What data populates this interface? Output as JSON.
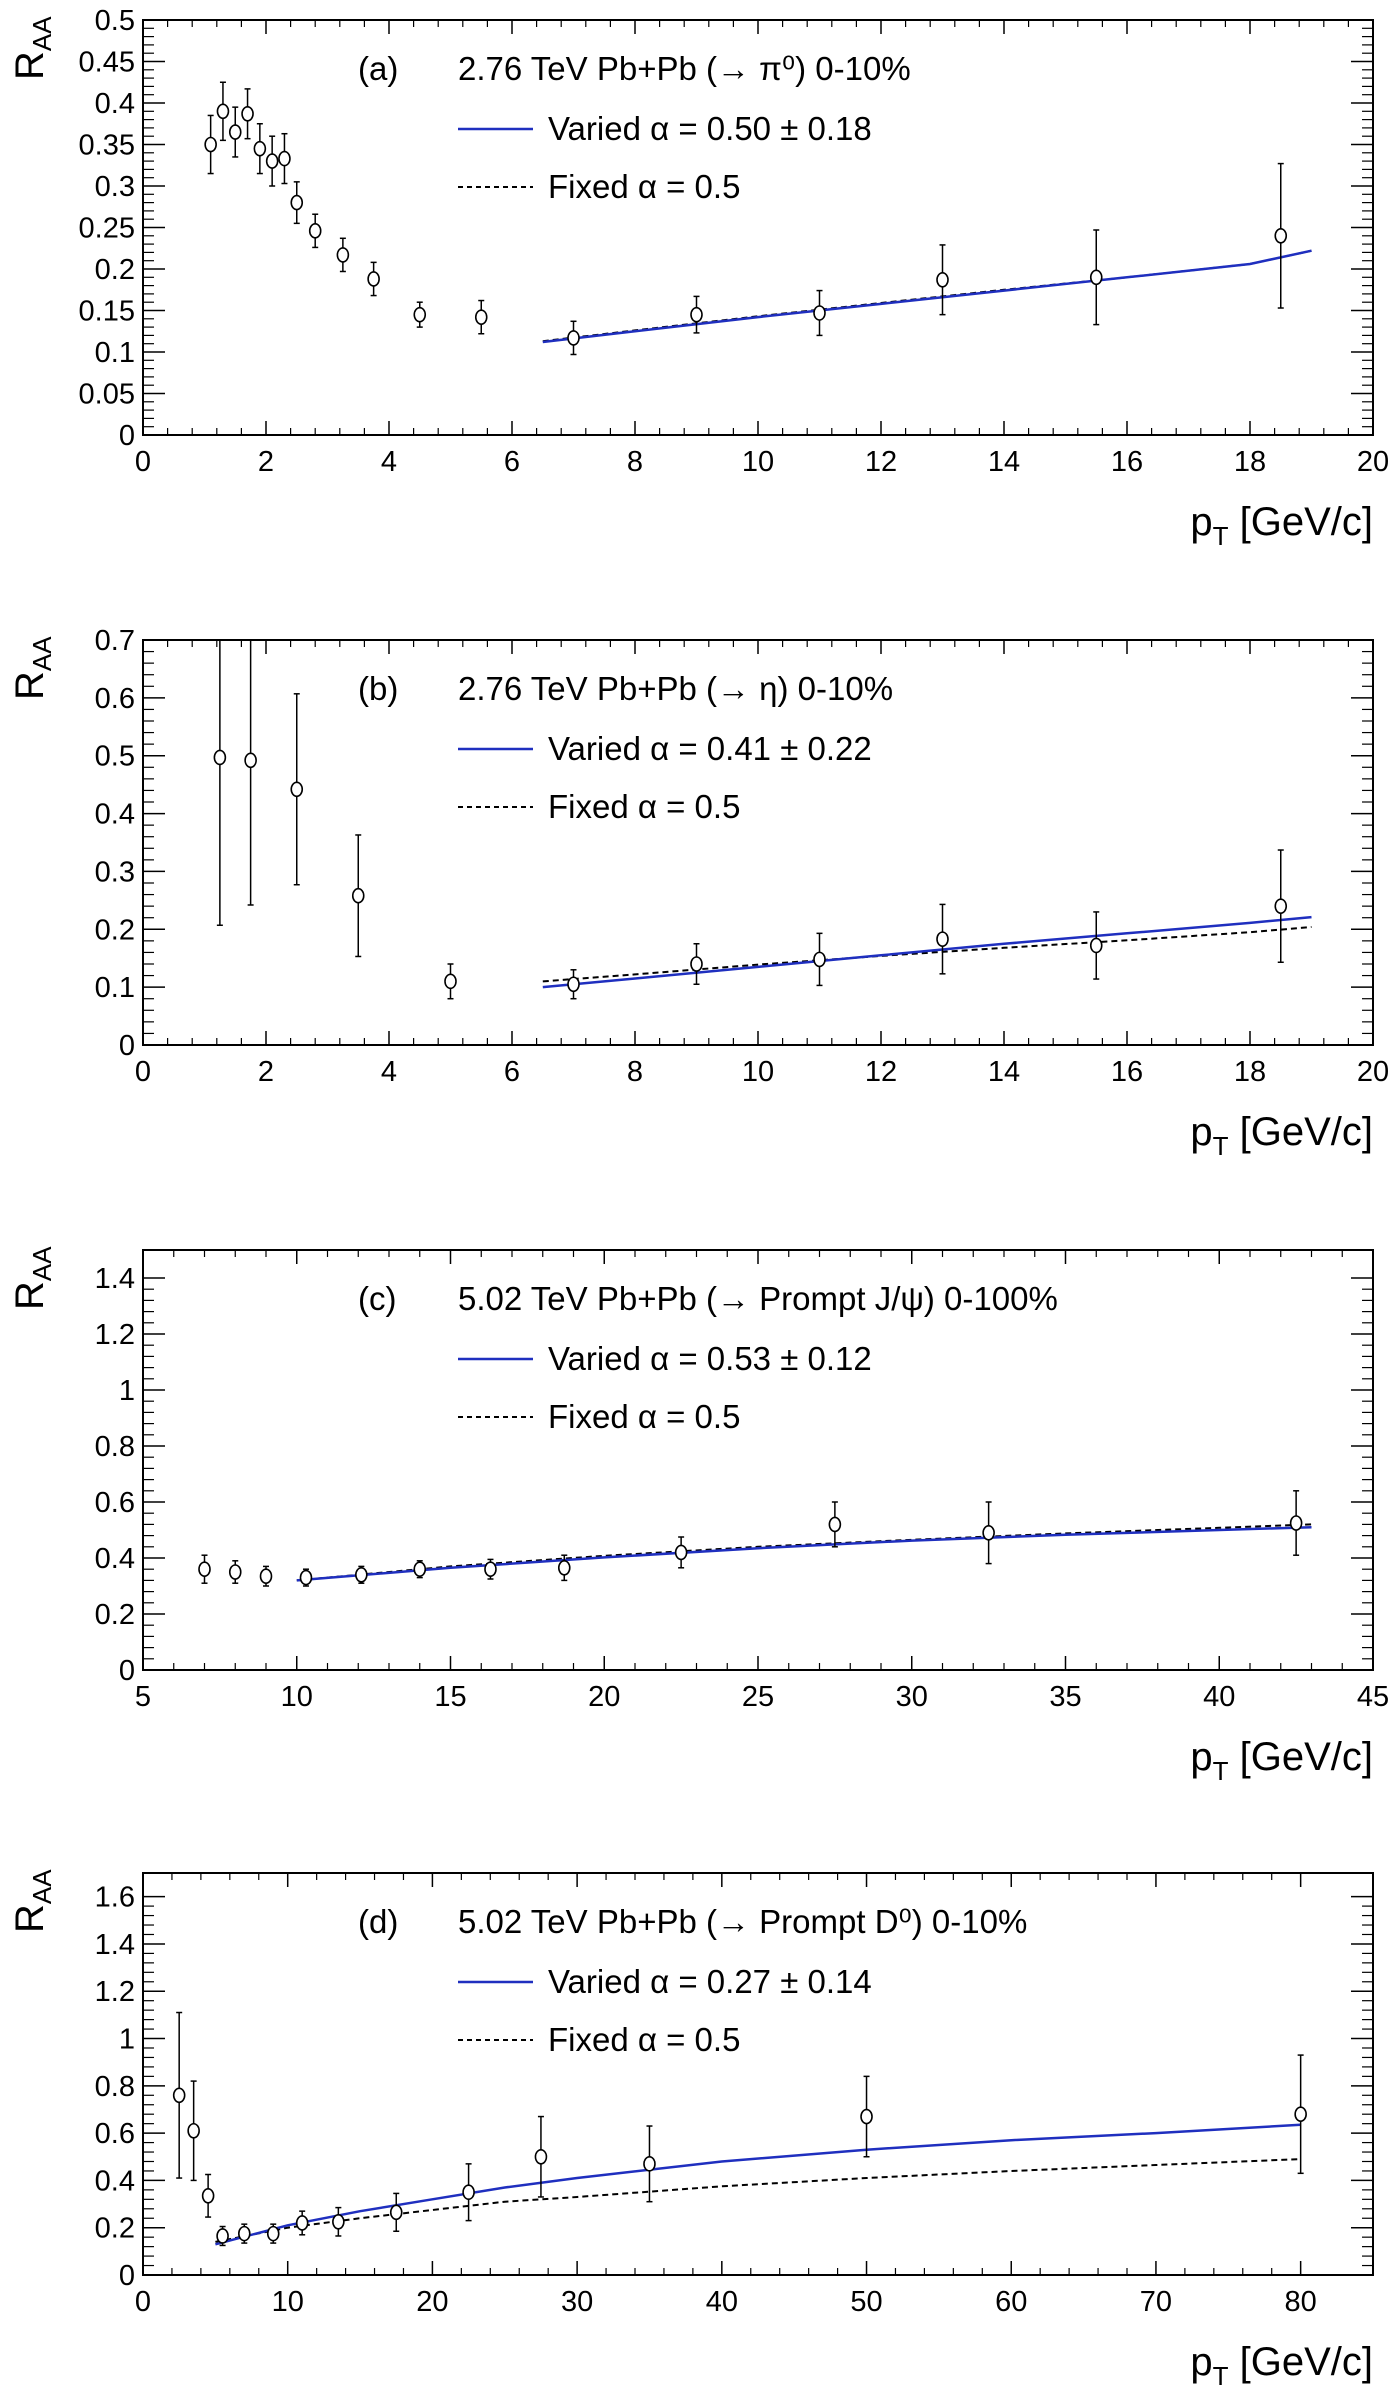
{
  "colors": {
    "varied": "#1f2fbf",
    "fixed": "#000000",
    "points": "#000000",
    "axes": "#000000"
  },
  "chart_data": [
    {
      "type": "scatter",
      "panel_label": "(a)",
      "title": "2.76 TeV Pb+Pb (→ π⁰) 0-10%",
      "ylabel": "R",
      "ylabel_sub": "AA",
      "xlabel": "p",
      "xlabel_sub": "T",
      "xlabel_unit": " [GeV/c]",
      "xlim": [
        0,
        20
      ],
      "ylim": [
        0,
        0.5
      ],
      "xticks": [
        0,
        2,
        4,
        6,
        8,
        10,
        12,
        14,
        16,
        18,
        20
      ],
      "xtick_labels": [
        "0",
        "2",
        "4",
        "6",
        "8",
        "10",
        "12",
        "14",
        "16",
        "18",
        "20"
      ],
      "yticks": [
        0,
        0.05,
        0.1,
        0.15,
        0.2,
        0.25,
        0.3,
        0.35,
        0.4,
        0.45,
        0.5
      ],
      "ytick_labels": [
        "0",
        "0.05",
        "0.1",
        "0.15",
        "0.2",
        "0.25",
        "0.3",
        "0.35",
        "0.4",
        "0.45",
        "0.5"
      ],
      "legend": [
        "Varied α = 0.50 ± 0.18",
        "Fixed α = 0.5"
      ],
      "points": [
        {
          "x": 1.1,
          "y": 0.35,
          "err": 0.035
        },
        {
          "x": 1.3,
          "y": 0.39,
          "err": 0.035
        },
        {
          "x": 1.5,
          "y": 0.365,
          "err": 0.03
        },
        {
          "x": 1.7,
          "y": 0.387,
          "err": 0.03
        },
        {
          "x": 1.9,
          "y": 0.345,
          "err": 0.03
        },
        {
          "x": 2.1,
          "y": 0.33,
          "err": 0.03
        },
        {
          "x": 2.3,
          "y": 0.333,
          "err": 0.03
        },
        {
          "x": 2.5,
          "y": 0.28,
          "err": 0.025
        },
        {
          "x": 2.8,
          "y": 0.246,
          "err": 0.02
        },
        {
          "x": 3.25,
          "y": 0.217,
          "err": 0.02
        },
        {
          "x": 3.75,
          "y": 0.188,
          "err": 0.02
        },
        {
          "x": 4.5,
          "y": 0.145,
          "err": 0.015
        },
        {
          "x": 5.5,
          "y": 0.142,
          "err": 0.02
        },
        {
          "x": 7,
          "y": 0.117,
          "err": 0.02
        },
        {
          "x": 9,
          "y": 0.145,
          "err": 0.022
        },
        {
          "x": 11,
          "y": 0.147,
          "err": 0.027
        },
        {
          "x": 13,
          "y": 0.187,
          "err": 0.042
        },
        {
          "x": 15.5,
          "y": 0.19,
          "err": 0.057
        },
        {
          "x": 18.5,
          "y": 0.24,
          "err": 0.087
        }
      ],
      "varied_curve": {
        "x": [
          6.5,
          8,
          10,
          12,
          14,
          16,
          18,
          19
        ],
        "y": [
          0.112,
          0.125,
          0.142,
          0.158,
          0.174,
          0.19,
          0.206,
          0.222
        ]
      },
      "fixed_curve": {
        "x": [
          6.5,
          8,
          10,
          12,
          14,
          16,
          18,
          19
        ],
        "y": [
          0.113,
          0.126,
          0.143,
          0.159,
          0.175,
          0.19,
          0.206,
          0.222
        ]
      }
    },
    {
      "type": "scatter",
      "panel_label": "(b)",
      "title": "2.76 TeV Pb+Pb (→ η) 0-10%",
      "ylabel": "R",
      "ylabel_sub": "AA",
      "xlabel": "p",
      "xlabel_sub": "T",
      "xlabel_unit": " [GeV/c]",
      "xlim": [
        0,
        20
      ],
      "ylim": [
        0,
        0.7
      ],
      "xticks": [
        0,
        2,
        4,
        6,
        8,
        10,
        12,
        14,
        16,
        18,
        20
      ],
      "xtick_labels": [
        "0",
        "2",
        "4",
        "6",
        "8",
        "10",
        "12",
        "14",
        "16",
        "18",
        "20"
      ],
      "yticks": [
        0,
        0.1,
        0.2,
        0.3,
        0.4,
        0.5,
        0.6,
        0.7
      ],
      "ytick_labels": [
        "0",
        "0.1",
        "0.2",
        "0.3",
        "0.4",
        "0.5",
        "0.6",
        "0.7"
      ],
      "legend": [
        "Varied α = 0.41 ± 0.22",
        "Fixed α = 0.5"
      ],
      "points": [
        {
          "x": 1.25,
          "y": 0.497,
          "err": 0.29
        },
        {
          "x": 1.75,
          "y": 0.492,
          "err": 0.25
        },
        {
          "x": 2.5,
          "y": 0.442,
          "err": 0.165
        },
        {
          "x": 3.5,
          "y": 0.258,
          "err": 0.105
        },
        {
          "x": 5,
          "y": 0.11,
          "err": 0.03
        },
        {
          "x": 7,
          "y": 0.105,
          "err": 0.025
        },
        {
          "x": 9,
          "y": 0.14,
          "err": 0.035
        },
        {
          "x": 11,
          "y": 0.148,
          "err": 0.045
        },
        {
          "x": 13,
          "y": 0.183,
          "err": 0.06
        },
        {
          "x": 15.5,
          "y": 0.172,
          "err": 0.058
        },
        {
          "x": 18.5,
          "y": 0.24,
          "err": 0.097
        }
      ],
      "varied_curve": {
        "x": [
          6.5,
          8,
          10,
          12,
          14,
          16,
          18,
          19
        ],
        "y": [
          0.1,
          0.115,
          0.135,
          0.155,
          0.175,
          0.193,
          0.211,
          0.221
        ]
      },
      "fixed_curve": {
        "x": [
          6.5,
          8,
          10,
          12,
          14,
          16,
          18,
          19
        ],
        "y": [
          0.11,
          0.122,
          0.139,
          0.154,
          0.168,
          0.181,
          0.195,
          0.204
        ]
      }
    },
    {
      "type": "scatter",
      "panel_label": "(c)",
      "title": "5.02 TeV Pb+Pb (→ Prompt J/ψ) 0-100%",
      "ylabel": "R",
      "ylabel_sub": "AA",
      "xlabel": "p",
      "xlabel_sub": "T",
      "xlabel_unit": " [GeV/c]",
      "xlim": [
        5,
        45
      ],
      "ylim": [
        0,
        1.5
      ],
      "xticks": [
        5,
        10,
        15,
        20,
        25,
        30,
        35,
        40,
        45
      ],
      "xtick_labels": [
        "5",
        "10",
        "15",
        "20",
        "25",
        "30",
        "35",
        "40",
        "45"
      ],
      "yticks": [
        0,
        0.2,
        0.4,
        0.6,
        0.8,
        1,
        1.2,
        1.4
      ],
      "ytick_labels": [
        "0",
        "0.2",
        "0.4",
        "0.6",
        "0.8",
        "1",
        "1.2",
        "1.4"
      ],
      "legend": [
        "Varied α = 0.53 ± 0.12",
        "Fixed α = 0.5"
      ],
      "points": [
        {
          "x": 7,
          "y": 0.36,
          "err": 0.05
        },
        {
          "x": 8,
          "y": 0.35,
          "err": 0.04
        },
        {
          "x": 9,
          "y": 0.335,
          "err": 0.035
        },
        {
          "x": 10.3,
          "y": 0.33,
          "err": 0.03
        },
        {
          "x": 12.1,
          "y": 0.34,
          "err": 0.03
        },
        {
          "x": 14,
          "y": 0.36,
          "err": 0.03
        },
        {
          "x": 16.3,
          "y": 0.36,
          "err": 0.035
        },
        {
          "x": 18.7,
          "y": 0.365,
          "err": 0.045
        },
        {
          "x": 22.5,
          "y": 0.42,
          "err": 0.055
        },
        {
          "x": 27.5,
          "y": 0.52,
          "err": 0.08
        },
        {
          "x": 32.5,
          "y": 0.49,
          "err": 0.11
        },
        {
          "x": 42.5,
          "y": 0.525,
          "err": 0.115
        }
      ],
      "varied_curve": {
        "x": [
          10,
          15,
          20,
          25,
          30,
          35,
          40,
          43
        ],
        "y": [
          0.32,
          0.365,
          0.402,
          0.435,
          0.462,
          0.483,
          0.5,
          0.51
        ]
      },
      "fixed_curve": {
        "x": [
          10,
          15,
          20,
          25,
          30,
          35,
          40,
          43
        ],
        "y": [
          0.32,
          0.37,
          0.408,
          0.44,
          0.465,
          0.488,
          0.508,
          0.52
        ]
      }
    },
    {
      "type": "scatter",
      "panel_label": "(d)",
      "title": "5.02 TeV Pb+Pb (→ Prompt D⁰) 0-10%",
      "ylabel": "R",
      "ylabel_sub": "AA",
      "xlabel": "p",
      "xlabel_sub": "T",
      "xlabel_unit": " [GeV/c]",
      "xlim": [
        0,
        85
      ],
      "ylim": [
        0,
        1.7
      ],
      "xticks": [
        0,
        10,
        20,
        30,
        40,
        50,
        60,
        70,
        80
      ],
      "xtick_labels": [
        "0",
        "10",
        "20",
        "30",
        "40",
        "50",
        "60",
        "70",
        "80"
      ],
      "yticks": [
        0,
        0.2,
        0.4,
        0.6,
        0.8,
        1,
        1.2,
        1.4,
        1.6
      ],
      "ytick_labels": [
        "0",
        "0.2",
        "0.4",
        "0.6",
        "0.8",
        "1",
        "1.2",
        "1.4",
        "1.6"
      ],
      "legend": [
        "Varied α = 0.27 ± 0.14",
        "Fixed α = 0.5"
      ],
      "points": [
        {
          "x": 2.5,
          "y": 0.76,
          "err": 0.35
        },
        {
          "x": 3.5,
          "y": 0.61,
          "err": 0.21
        },
        {
          "x": 4.5,
          "y": 0.335,
          "err": 0.09
        },
        {
          "x": 5.5,
          "y": 0.165,
          "err": 0.04
        },
        {
          "x": 7,
          "y": 0.175,
          "err": 0.04
        },
        {
          "x": 9,
          "y": 0.175,
          "err": 0.04
        },
        {
          "x": 11,
          "y": 0.22,
          "err": 0.05
        },
        {
          "x": 13.5,
          "y": 0.225,
          "err": 0.06
        },
        {
          "x": 17.5,
          "y": 0.265,
          "err": 0.08
        },
        {
          "x": 22.5,
          "y": 0.35,
          "err": 0.12
        },
        {
          "x": 27.5,
          "y": 0.5,
          "err": 0.17
        },
        {
          "x": 35,
          "y": 0.47,
          "err": 0.16
        },
        {
          "x": 50,
          "y": 0.67,
          "err": 0.17
        },
        {
          "x": 80,
          "y": 0.68,
          "err": 0.25
        }
      ],
      "varied_curve": {
        "x": [
          5,
          10,
          15,
          20,
          25,
          30,
          40,
          50,
          60,
          70,
          80
        ],
        "y": [
          0.13,
          0.21,
          0.27,
          0.32,
          0.37,
          0.41,
          0.48,
          0.53,
          0.57,
          0.6,
          0.635
        ]
      },
      "fixed_curve": {
        "x": [
          5,
          10,
          15,
          20,
          25,
          30,
          40,
          50,
          60,
          70,
          80
        ],
        "y": [
          0.14,
          0.2,
          0.24,
          0.275,
          0.31,
          0.33,
          0.375,
          0.41,
          0.44,
          0.465,
          0.49
        ]
      }
    }
  ]
}
